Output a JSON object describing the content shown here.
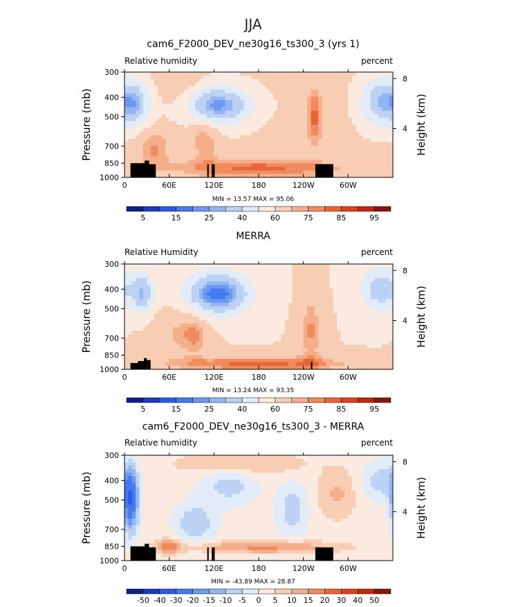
{
  "page": {
    "season": "JJA"
  },
  "colors": {
    "full": [
      "#0a1f8c",
      "#1a3bc4",
      "#2c5be8",
      "#4479f0",
      "#6a98f2",
      "#93b6f2",
      "#bcd2f4",
      "#e2ecf8",
      "#faeadf",
      "#f7cdb4",
      "#f4ae8a",
      "#f08a5f",
      "#ea6534",
      "#dd4218",
      "#bd2a10",
      "#8a1508"
    ],
    "diff": [
      "#0a1f8c",
      "#1a3bc4",
      "#2c5be8",
      "#4479f0",
      "#6a98f2",
      "#93b6f2",
      "#bcd2f4",
      "#e2ecf8",
      "#faeadf",
      "#f7cdb4",
      "#f4ae8a",
      "#f08a5f",
      "#ea6534",
      "#dd4218",
      "#bd2a10",
      "#8a1508"
    ]
  },
  "chart_data": [
    {
      "type": "heatmap",
      "title": "cam6_F2000_DEV_ne30g16_ts300_3 (yrs 1)",
      "left_label": "Relative humidity",
      "right_label": "percent",
      "ylabel": "Pressure (mb)",
      "y2label": "Height (km)",
      "x_ticks": [
        "0",
        "60E",
        "120E",
        "180",
        "120W",
        "60W"
      ],
      "y_ticks": [
        "300",
        "400",
        "500",
        "700",
        "850",
        "1000"
      ],
      "y2_ticks": [
        "8",
        "4"
      ],
      "stats": "MIN =   13.57   MAX =   95.06",
      "min": 13.57,
      "max": 95.06,
      "colorbar_labels": [
        "5",
        "15",
        "25",
        "40",
        "60",
        "75",
        "85",
        "95"
      ],
      "colorbar_levels": [
        0,
        5,
        10,
        15,
        20,
        25,
        30,
        40,
        50,
        60,
        70,
        75,
        80,
        85,
        90,
        95,
        100
      ],
      "base": 62,
      "features": [
        {
          "lon": 120,
          "p": 440,
          "amp": -42,
          "wlon": 34,
          "wp": 0.16
        },
        {
          "lon": 15,
          "p": 430,
          "amp": -26,
          "wlon": 14,
          "wp": 0.18
        },
        {
          "lon": 345,
          "p": 420,
          "amp": -32,
          "wlon": 20,
          "wp": 0.2
        },
        {
          "lon": 80,
          "p": 400,
          "amp": 12,
          "wlon": 20,
          "wp": 0.2
        },
        {
          "lon": 108,
          "p": 620,
          "amp": 14,
          "wlon": 14,
          "wp": 0.2
        },
        {
          "lon": 180,
          "p": 900,
          "amp": 20,
          "wlon": 80,
          "wp": 0.08
        },
        {
          "lon": 255,
          "p": 500,
          "amp": 20,
          "wlon": 8,
          "wp": 0.25
        },
        {
          "lon": 40,
          "p": 720,
          "amp": 14,
          "wlon": 16,
          "wp": 0.15
        }
      ],
      "terrain": [
        [
          8,
          30,
          850
        ],
        [
          27,
          33,
          825
        ],
        [
          33,
          42,
          860
        ],
        [
          111,
          113,
          860
        ],
        [
          117,
          119,
          860
        ],
        [
          119,
          121,
          860
        ],
        [
          256,
          280,
          860
        ]
      ]
    },
    {
      "type": "heatmap",
      "title": "MERRA",
      "left_label": "Relative Humidity",
      "right_label": "percent",
      "ylabel": "Pressure (mb)",
      "y2label": "Height (km)",
      "x_ticks": [
        "0",
        "60E",
        "120E",
        "180",
        "120W",
        "60W"
      ],
      "y_ticks": [
        "300",
        "400",
        "500",
        "700",
        "850",
        "1000"
      ],
      "y2_ticks": [
        "8",
        "4"
      ],
      "stats": "MIN =   13.24   MAX =   93.35",
      "min": 13.24,
      "max": 93.35,
      "colorbar_labels": [
        "5",
        "15",
        "25",
        "40",
        "60",
        "75",
        "85",
        "95"
      ],
      "colorbar_levels": [
        0,
        5,
        10,
        15,
        20,
        25,
        30,
        40,
        50,
        60,
        70,
        75,
        80,
        85,
        90,
        95,
        100
      ],
      "base": 60,
      "features": [
        {
          "lon": 125,
          "p": 420,
          "amp": -44,
          "wlon": 30,
          "wp": 0.17
        },
        {
          "lon": 25,
          "p": 420,
          "amp": -28,
          "wlon": 10,
          "wp": 0.17
        },
        {
          "lon": 345,
          "p": 400,
          "amp": -28,
          "wlon": 20,
          "wp": 0.18
        },
        {
          "lon": 70,
          "p": 660,
          "amp": 10,
          "wlon": 25,
          "wp": 0.2
        },
        {
          "lon": 95,
          "p": 680,
          "amp": 12,
          "wlon": 12,
          "wp": 0.15
        },
        {
          "lon": 180,
          "p": 940,
          "amp": 22,
          "wlon": 90,
          "wp": 0.06
        },
        {
          "lon": 250,
          "p": 650,
          "amp": 16,
          "wlon": 10,
          "wp": 0.3
        }
      ],
      "terrain": [
        [
          8,
          20,
          930
        ],
        [
          18,
          26,
          910
        ],
        [
          26,
          30,
          880
        ],
        [
          30,
          35,
          900
        ],
        [
          250,
          252,
          920
        ]
      ]
    },
    {
      "type": "heatmap",
      "title": "cam6_F2000_DEV_ne30g16_ts300_3 - MERRA",
      "left_label": "Relative humidity",
      "right_label": "percent",
      "ylabel": "Pressure (mb)",
      "y2label": "Height (km)",
      "x_ticks": [
        "0",
        "60E",
        "120E",
        "180",
        "120W",
        "60W"
      ],
      "y_ticks": [
        "300",
        "400",
        "500",
        "700",
        "850",
        "1000"
      ],
      "y2_ticks": [
        "8",
        "4"
      ],
      "stats": "MIN = -43.89   MAX =   28.87",
      "min": -43.89,
      "max": 28.87,
      "colorbar_labels": [
        "-50",
        "-40",
        "-30",
        "-20",
        "-15",
        "-10",
        "-5",
        "0",
        "5",
        "10",
        "15",
        "20",
        "30",
        "40",
        "50"
      ],
      "colorbar_levels": [
        -60,
        -50,
        -40,
        -30,
        -20,
        -15,
        -10,
        -5,
        0,
        5,
        10,
        15,
        20,
        30,
        40,
        50,
        60
      ],
      "base": 2,
      "features": [
        {
          "lon": 8,
          "p": 500,
          "amp": -32,
          "wlon": 7,
          "wp": 0.25
        },
        {
          "lon": 95,
          "p": 650,
          "amp": -12,
          "wlon": 18,
          "wp": 0.15
        },
        {
          "lon": 140,
          "p": 420,
          "amp": -10,
          "wlon": 25,
          "wp": 0.15
        },
        {
          "lon": 225,
          "p": 560,
          "amp": -10,
          "wlon": 14,
          "wp": 0.2
        },
        {
          "lon": 345,
          "p": 400,
          "amp": -10,
          "wlon": 18,
          "wp": 0.15
        },
        {
          "lon": 60,
          "p": 850,
          "amp": 15,
          "wlon": 12,
          "wp": 0.06
        },
        {
          "lon": 190,
          "p": 860,
          "amp": 14,
          "wlon": 70,
          "wp": 0.05
        },
        {
          "lon": 155,
          "p": 330,
          "amp": 9,
          "wlon": 60,
          "wp": 0.1
        },
        {
          "lon": 285,
          "p": 470,
          "amp": 9,
          "wlon": 18,
          "wp": 0.2
        }
      ],
      "terrain": [
        [
          8,
          30,
          850
        ],
        [
          27,
          33,
          825
        ],
        [
          33,
          42,
          860
        ],
        [
          111,
          113,
          860
        ],
        [
          117,
          119,
          860
        ],
        [
          119,
          121,
          860
        ],
        [
          256,
          280,
          860
        ]
      ]
    }
  ]
}
